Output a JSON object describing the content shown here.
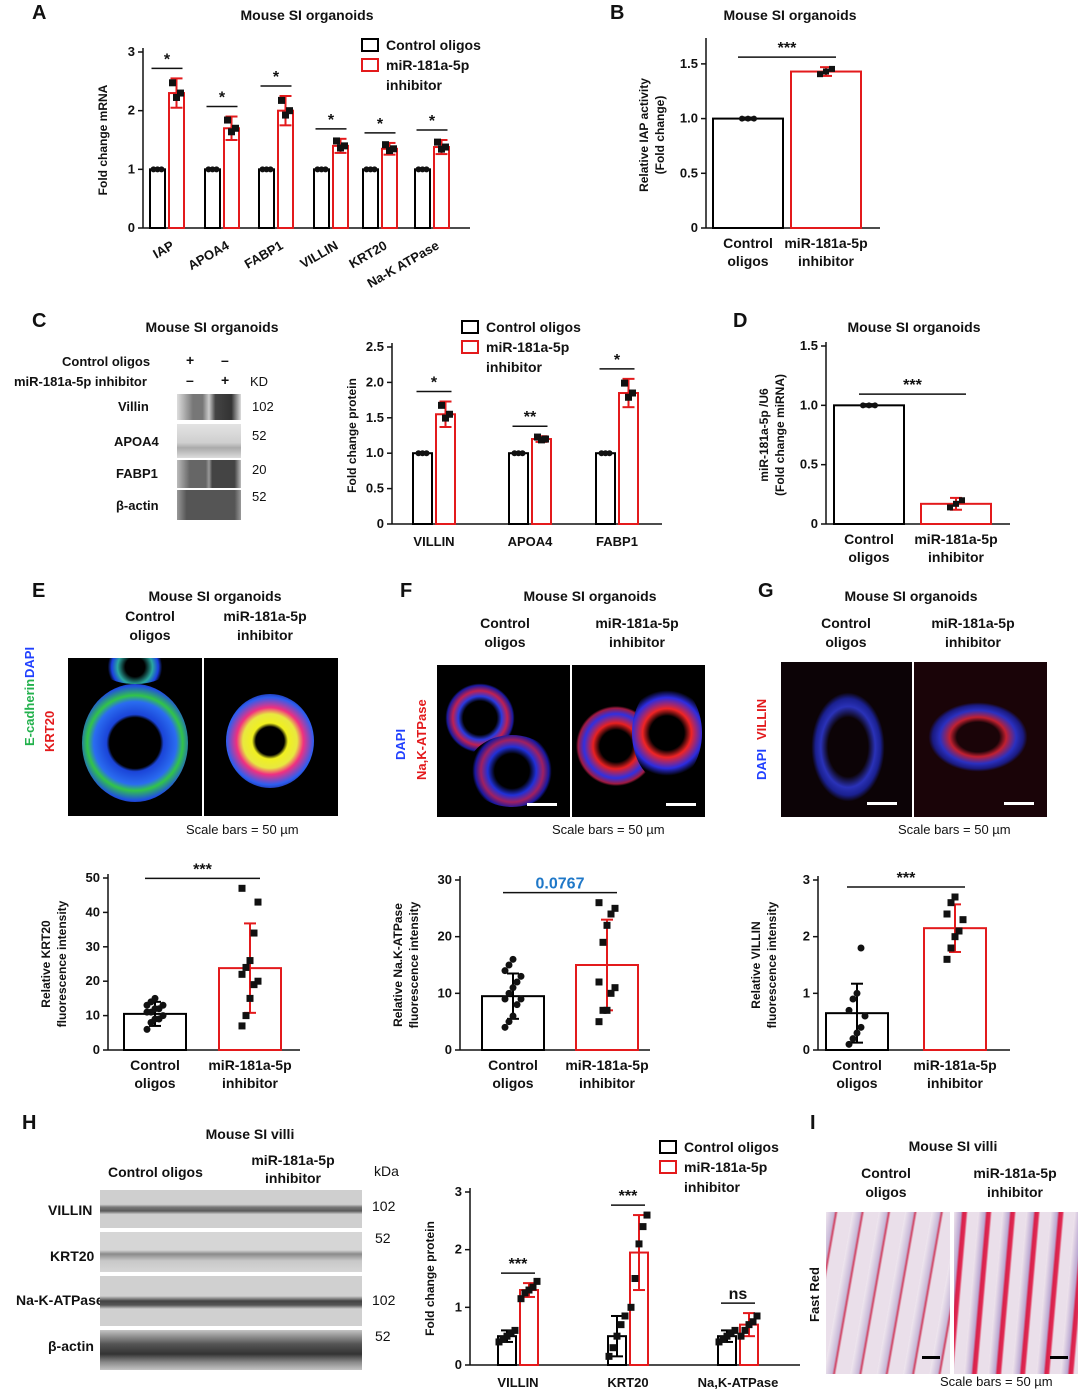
{
  "panel_letters": [
    "A",
    "B",
    "C",
    "D",
    "E",
    "F",
    "G",
    "H",
    "I"
  ],
  "titles": {
    "A": "Mouse SI organoids",
    "B": "Mouse SI organoids",
    "C": "Mouse SI organoids",
    "D": "Mouse SI organoids",
    "E": "Mouse SI organoids",
    "F": "Mouse SI organoids",
    "G": "Mouse SI organoids",
    "H": "Mouse SI villi",
    "I": "Mouse SI villi"
  },
  "legend": {
    "control": "Control oligos",
    "inhibitor_1": "miR-181a-5p",
    "inhibitor_2": "inhibitor"
  },
  "group_labels": {
    "control_1": "Control",
    "control_2": "oligos",
    "inhibitor_1": "miR-181a-5p",
    "inhibitor_2": "inhibitor"
  },
  "scale_bars": "Scale bars = 50 µm",
  "western_C": {
    "rows": [
      "Control oligos",
      "miR-181a-5p inhibitor"
    ],
    "signs_row1": [
      "+",
      "–"
    ],
    "signs_row2": [
      "–",
      "+"
    ],
    "kd_label": "KD",
    "proteins": [
      "Villin",
      "APOA4",
      "FABP1",
      "β-actin"
    ],
    "markers": [
      "102",
      "52",
      "20",
      "52"
    ]
  },
  "western_H": {
    "group1": "Control oligos",
    "group2_line1": "miR-181a-5p",
    "group2_line2": "inhibitor",
    "kda_label": "kDa",
    "proteins": [
      "VILLIN",
      "KRT20",
      "Na-K-ATPase",
      "β-actin"
    ],
    "markers": [
      "102",
      "52",
      "102",
      "52"
    ]
  },
  "image_labels": {
    "E": [
      "E-cadherin",
      "DAPI",
      "KRT20"
    ],
    "F": [
      "DAPI",
      "Na,K-ATPase"
    ],
    "G": [
      "DAPI",
      "VILLIN"
    ],
    "I": "Fast Red"
  },
  "colors": {
    "control": "#000000",
    "inhibitor": "#e31a1c",
    "pvalue_blue": "#1f78c8",
    "green": "#22b14c",
    "blue": "#2040ff"
  },
  "chart_data": [
    {
      "id": "A",
      "type": "bar",
      "categories": [
        "IAP",
        "APOA4",
        "FABP1",
        "VILLIN",
        "KRT20",
        "Na-K ATPase"
      ],
      "series": [
        {
          "name": "Control oligos",
          "values": [
            1,
            1,
            1,
            1,
            1,
            1
          ],
          "err": [
            0.02,
            0.02,
            0.02,
            0.02,
            0.02,
            0.02
          ]
        },
        {
          "name": "miR-181a-5p inhibitor",
          "values": [
            2.3,
            1.7,
            2.0,
            1.4,
            1.35,
            1.38
          ],
          "err": [
            0.25,
            0.2,
            0.25,
            0.12,
            0.1,
            0.12
          ]
        }
      ],
      "significance": [
        "*",
        "*",
        "*",
        "*",
        "*",
        "*"
      ],
      "ylabel": "Fold change mRNA",
      "ylim": [
        0,
        3
      ],
      "yticks": [
        0,
        1,
        2,
        3
      ]
    },
    {
      "id": "B",
      "type": "bar",
      "categories": [
        "Control oligos",
        "miR-181a-5p inhibitor"
      ],
      "values": [
        1.0,
        1.43
      ],
      "err": [
        0.01,
        0.04
      ],
      "significance": "***",
      "ylabel": "Relative IAP activity (Fold change)",
      "ylim": [
        0,
        1.7
      ],
      "yticks": [
        0,
        0.5,
        1.0,
        1.5
      ]
    },
    {
      "id": "C",
      "type": "bar",
      "categories": [
        "VILLIN",
        "APOA4",
        "FABP1"
      ],
      "series": [
        {
          "name": "Control oligos",
          "values": [
            1,
            1,
            1
          ],
          "err": [
            0.01,
            0.01,
            0.01
          ]
        },
        {
          "name": "miR-181a-5p inhibitor",
          "values": [
            1.55,
            1.2,
            1.85
          ],
          "err": [
            0.18,
            0.04,
            0.2
          ]
        }
      ],
      "significance": [
        "*",
        "**",
        "*"
      ],
      "ylabel": "Fold change protein",
      "ylim": [
        0,
        2.5
      ],
      "yticks": [
        0,
        0.5,
        1.0,
        1.5,
        2.0,
        2.5
      ]
    },
    {
      "id": "D",
      "type": "bar",
      "categories": [
        "Control oligos",
        "miR-181a-5p inhibitor"
      ],
      "values": [
        1.0,
        0.17
      ],
      "err": [
        0.01,
        0.05
      ],
      "significance": "***",
      "ylabel": "miR-181a-5p /U6 (Fold change miRNA)",
      "ylim": [
        0,
        1.5
      ],
      "yticks": [
        0,
        0.5,
        1.0,
        1.5
      ]
    },
    {
      "id": "E",
      "type": "bar",
      "categories": [
        "Control oligos",
        "miR-181a-5p inhibitor"
      ],
      "values": [
        10.5,
        23.8
      ],
      "err": [
        3.5,
        13
      ],
      "points": [
        [
          6,
          8,
          9,
          9,
          10,
          11,
          11,
          12,
          12,
          13,
          13,
          14,
          15
        ],
        [
          7,
          10,
          15,
          19,
          20,
          22,
          24,
          26,
          34,
          43,
          47
        ]
      ],
      "significance": "***",
      "ylabel": "Relative KRT20 fluorescence intensity",
      "ylim": [
        0,
        50
      ],
      "yticks": [
        0,
        10,
        20,
        30,
        40,
        50
      ]
    },
    {
      "id": "F",
      "type": "bar",
      "categories": [
        "Control oligos",
        "miR-181a-5p inhibitor"
      ],
      "values": [
        9.5,
        15.0
      ],
      "err": [
        4,
        8
      ],
      "points": [
        [
          4,
          5,
          6,
          8,
          9,
          9,
          10,
          11,
          12,
          13,
          14,
          15,
          16
        ],
        [
          5,
          7,
          7,
          10,
          11,
          12,
          19,
          22,
          24,
          25,
          26
        ]
      ],
      "significance": "0.0767",
      "ylabel": "Relative Na.K-ATPase fluorescence intensity",
      "ylim": [
        0,
        30
      ],
      "yticks": [
        0,
        10,
        20,
        30
      ]
    },
    {
      "id": "G",
      "type": "bar",
      "categories": [
        "Control oligos",
        "miR-181a-5p inhibitor"
      ],
      "values": [
        0.65,
        2.15
      ],
      "err": [
        0.52,
        0.42
      ],
      "points": [
        [
          0.1,
          0.2,
          0.3,
          0.4,
          0.6,
          0.7,
          0.9,
          1.0,
          1.8
        ],
        [
          1.6,
          1.8,
          2.0,
          2.1,
          2.3,
          2.4,
          2.6,
          2.7
        ]
      ],
      "significance": "***",
      "ylabel": "Relative VILLIN fluorescence intensity",
      "ylim": [
        0,
        3
      ],
      "yticks": [
        0,
        1,
        2,
        3
      ]
    },
    {
      "id": "H",
      "type": "bar",
      "categories": [
        "VILLIN",
        "KRT20",
        "Na,K-ATPase"
      ],
      "series": [
        {
          "name": "Control oligos",
          "values": [
            0.5,
            0.5,
            0.5
          ],
          "err": [
            0.1,
            0.35,
            0.1
          ],
          "points": [
            [
              0.4,
              0.45,
              0.5,
              0.55,
              0.6
            ],
            [
              0.15,
              0.3,
              0.5,
              0.7,
              0.85
            ],
            [
              0.4,
              0.45,
              0.5,
              0.55,
              0.6
            ]
          ]
        },
        {
          "name": "miR-181a-5p inhibitor",
          "values": [
            1.3,
            1.95,
            0.7
          ],
          "err": [
            0.12,
            0.65,
            0.2
          ],
          "points": [
            [
              1.15,
              1.25,
              1.3,
              1.35,
              1.45
            ],
            [
              1.0,
              1.5,
              2.1,
              2.4,
              2.6
            ],
            [
              0.5,
              0.6,
              0.7,
              0.75,
              0.85
            ]
          ]
        }
      ],
      "significance": [
        "***",
        "***",
        "ns"
      ],
      "ylabel": "Fold change protein",
      "ylim": [
        0,
        3
      ],
      "yticks": [
        0,
        1,
        2,
        3
      ]
    }
  ]
}
